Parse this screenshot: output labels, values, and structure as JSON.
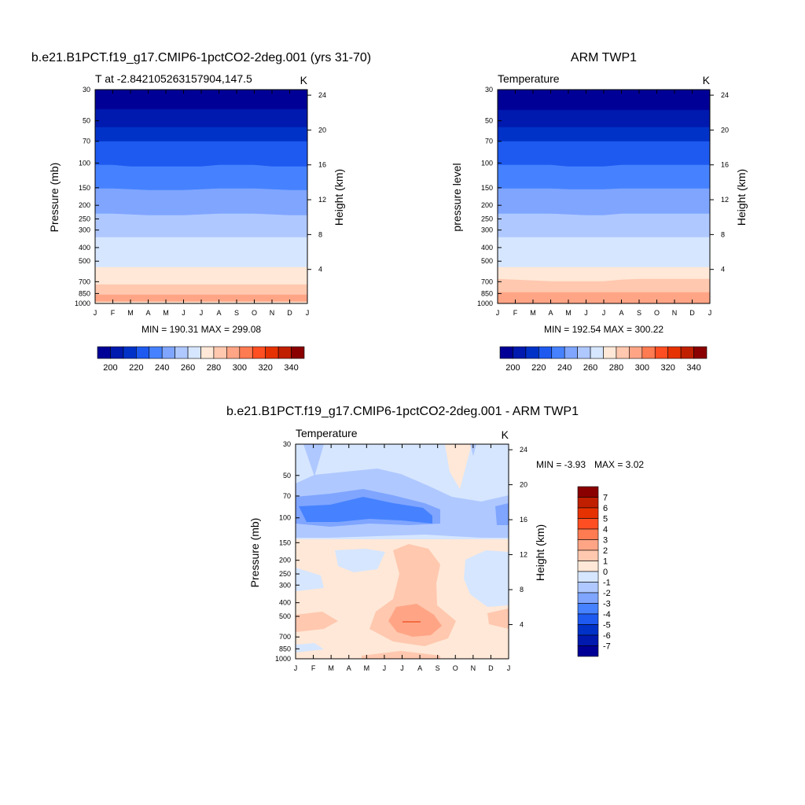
{
  "tick_len": 5,
  "months": [
    "J",
    "F",
    "M",
    "A",
    "M",
    "J",
    "J",
    "A",
    "S",
    "O",
    "N",
    "D",
    "J"
  ],
  "pressure_ticks": [
    "30",
    "50",
    "70",
    "100",
    "150",
    "200",
    "250",
    "300",
    "400",
    "500",
    "700",
    "850",
    "1000"
  ],
  "pressure_values": [
    30,
    50,
    70,
    100,
    150,
    200,
    250,
    300,
    400,
    500,
    700,
    850,
    1000
  ],
  "height_ticks": [
    "24",
    "20",
    "16",
    "12",
    "8",
    "4"
  ],
  "height_values": [
    24,
    20,
    16,
    12,
    8,
    4
  ],
  "temp_colors": [
    "#000096",
    "#0019AE",
    "#0032C8",
    "#1E5AF0",
    "#4682FF",
    "#7FA5FF",
    "#AFC8FF",
    "#D6E6FF",
    "#FFE8D7",
    "#FFC8AF",
    "#FFA586",
    "#FF7B52",
    "#FF4F22",
    "#E63200",
    "#C01F00",
    "#8A0000"
  ],
  "temp_labels": [
    "200",
    "220",
    "240",
    "260",
    "280",
    "300",
    "320",
    "340"
  ],
  "diff_colors": [
    "#000096",
    "#0019AE",
    "#0032C8",
    "#1E5AF0",
    "#4682FF",
    "#7FA5FF",
    "#AFC8FF",
    "#D6E6FF",
    "#FFE8D7",
    "#FFC8AF",
    "#FFA586",
    "#FF7B52",
    "#FF4F22",
    "#E63200",
    "#C01F00",
    "#8A0000"
  ],
  "diff_labels": [
    "7",
    "6",
    "5",
    "4",
    "3",
    "2",
    "1",
    "0",
    "-1",
    "-2",
    "-3",
    "-4",
    "-5",
    "-6",
    "-7"
  ],
  "chart_data": [
    {
      "type": "heatmap",
      "title": "b.e21.B1PCT.f19_g17.CMIP6-1pctCO2-2deg.001 (yrs 31-70)",
      "left_label": "T at -2.842105263157904,147.5",
      "right_label": "K",
      "ylabel": "Pressure (mb)",
      "ylabel_right": "Height (km)",
      "stats": "MIN = 190.31 MAX = 299.08",
      "bands": [
        {
          "color": "#1E5AF0",
          "bottom": [
            40,
            40,
            40,
            40,
            40,
            40,
            40,
            40,
            40,
            40,
            40,
            40,
            40
          ]
        },
        {
          "color": "#0032C8",
          "bottom": [
            57,
            55,
            53,
            54,
            56,
            58,
            60,
            61,
            61,
            60,
            57,
            54,
            52
          ]
        },
        {
          "color": "#000096",
          "bottom": [
            139,
            139,
            139,
            139,
            139,
            139,
            139,
            139,
            139,
            139,
            139,
            139,
            139
          ]
        },
        {
          "color": "#0019AE",
          "bottom": [
            162,
            162,
            162,
            162,
            162,
            162,
            162,
            162,
            162,
            162,
            162,
            162,
            162
          ]
        },
        {
          "color": "#0032C8",
          "bottom": [
            180,
            180,
            180,
            180,
            180,
            180,
            180,
            180,
            180,
            180,
            180,
            180,
            180
          ]
        },
        {
          "color": "#1E5AF0",
          "bottom": [
            210,
            210,
            212,
            212,
            212,
            212,
            212,
            210,
            210,
            210,
            212,
            212,
            212
          ]
        },
        {
          "color": "#4682FF",
          "bottom": [
            240,
            240,
            241,
            242,
            242,
            242,
            241,
            240,
            240,
            240,
            241,
            242,
            242
          ]
        },
        {
          "color": "#7FA5FF",
          "bottom": [
            272,
            272,
            273,
            274,
            274,
            274,
            273,
            272,
            272,
            272,
            273,
            274,
            274
          ]
        },
        {
          "color": "#AFC8FF",
          "bottom": [
            302,
            302,
            302,
            302,
            302,
            302,
            302,
            302,
            302,
            302,
            302,
            302,
            302
          ]
        },
        {
          "color": "#D6E6FF",
          "bottom": [
            340,
            340,
            340,
            340,
            340,
            340,
            340,
            340,
            340,
            340,
            340,
            340,
            340
          ]
        },
        {
          "color": "#FFE8D7",
          "bottom": [
            362,
            362,
            362,
            362,
            362,
            362,
            362,
            362,
            362,
            362,
            362,
            362,
            362
          ]
        },
        {
          "color": "#FFC8AF",
          "bottom": [
            375,
            375,
            375,
            375,
            375,
            375,
            375,
            375,
            375,
            375,
            375,
            375,
            375
          ]
        },
        {
          "color": "#FFA586",
          "bottom": [
            384,
            384,
            384,
            384,
            384,
            384,
            384,
            384,
            384,
            384,
            384,
            384,
            384
          ]
        },
        {
          "color": "#FFE8D7",
          "bottom": [
            385,
            385,
            385,
            385,
            385,
            385,
            385,
            385,
            385,
            385,
            385,
            385,
            385
          ]
        }
      ],
      "colorbar_colors": "temp_colors",
      "colorbar_labels": "temp_labels"
    },
    {
      "type": "heatmap",
      "title": "ARM TWP1",
      "left_label": "Temperature",
      "right_label": "K",
      "ylabel": "pressure level",
      "ylabel_right": "Height (km)",
      "stats": "MIN = 192.54 MAX = 300.22",
      "bands": [
        {
          "color": "#1E5AF0",
          "bottom": [
            40,
            40,
            40,
            40,
            40,
            40,
            40,
            40,
            40,
            40,
            40,
            40,
            40
          ]
        },
        {
          "color": "#0032C8",
          "bottom": [
            62,
            63,
            64,
            66,
            70,
            74,
            80,
            84,
            80,
            74,
            70,
            67,
            66
          ]
        },
        {
          "color": "#000096",
          "bottom": [
            140,
            140,
            140,
            140,
            140,
            140,
            140,
            140,
            140,
            140,
            140,
            140,
            140
          ]
        },
        {
          "color": "#0019AE",
          "bottom": [
            162,
            162,
            162,
            162,
            162,
            162,
            162,
            162,
            162,
            162,
            162,
            162,
            162
          ]
        },
        {
          "color": "#0032C8",
          "bottom": [
            180,
            180,
            180,
            180,
            180,
            180,
            180,
            180,
            180,
            180,
            180,
            180,
            180
          ]
        },
        {
          "color": "#1E5AF0",
          "bottom": [
            210,
            210,
            210,
            210,
            212,
            212,
            212,
            210,
            210,
            210,
            210,
            210,
            210
          ]
        },
        {
          "color": "#4682FF",
          "bottom": [
            240,
            240,
            240,
            240,
            241,
            241,
            241,
            240,
            240,
            240,
            240,
            240,
            240
          ]
        },
        {
          "color": "#7FA5FF",
          "bottom": [
            272,
            272,
            272,
            272,
            273,
            274,
            274,
            272,
            272,
            272,
            272,
            272,
            272
          ]
        },
        {
          "color": "#AFC8FF",
          "bottom": [
            302,
            302,
            302,
            302,
            302,
            302,
            302,
            302,
            302,
            302,
            302,
            302,
            302
          ]
        },
        {
          "color": "#D6E6FF",
          "bottom": [
            340,
            340,
            340,
            340,
            340,
            340,
            340,
            340,
            340,
            340,
            340,
            340,
            340
          ]
        },
        {
          "color": "#FFE8D7",
          "bottom": [
            355,
            356,
            357,
            358,
            358,
            358,
            358,
            356,
            355,
            355,
            355,
            355,
            355
          ]
        },
        {
          "color": "#FFC8AF",
          "bottom": [
            372,
            372,
            372,
            372,
            372,
            372,
            372,
            372,
            372,
            372,
            372,
            372,
            372
          ]
        },
        {
          "color": "#FFA586",
          "bottom": [
            385,
            385,
            385,
            385,
            385,
            385,
            385,
            385,
            385,
            385,
            385,
            385,
            385
          ]
        }
      ],
      "colorbar_colors": "temp_colors",
      "colorbar_labels": "temp_labels"
    },
    {
      "type": "heatmap",
      "title": "b.e21.B1PCT.f19_g17.CMIP6-1pctCO2-2deg.001 - ARM TWP1",
      "left_label": "Temperature",
      "right_label": "K",
      "ylabel": "Pressure (mb)",
      "ylabel_right": "Height (km)",
      "stats_min": "MIN =  -3.93",
      "stats_max": "MAX =   3.02",
      "colorbar_colors": "diff_colors",
      "colorbar_labels": "diff_labels"
    }
  ]
}
